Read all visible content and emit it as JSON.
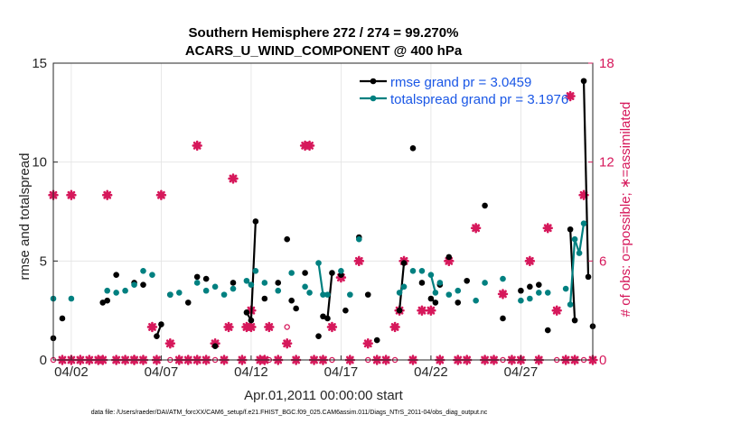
{
  "chart_data": {
    "type": "line",
    "title_line1": "Southern Hemisphere 272 / 274 = 99.270%",
    "title_line2": "ACARS_U_WIND_COMPONENT @ 400 hPa",
    "xlabel": "Apr.01,2011 00:00:00 start",
    "ylabel_left": "rmse and totalspread",
    "ylabel_right": "# of obs: o=possible; ∗=assimilated",
    "xlim": [
      1,
      31
    ],
    "ylim_left": [
      0,
      15
    ],
    "ylim_right": [
      0,
      18
    ],
    "x_ticks": [
      2,
      7,
      12,
      17,
      22,
      27
    ],
    "x_tick_labels": [
      "04/02",
      "04/07",
      "04/12",
      "04/17",
      "04/22",
      "04/27"
    ],
    "y_ticks_left": [
      0,
      5,
      10,
      15
    ],
    "y_tick_labels_left": [
      "0",
      "5",
      "10",
      "15"
    ],
    "y_ticks_right": [
      0,
      6,
      12,
      18
    ],
    "y_tick_labels_right": [
      "0",
      "6",
      "12",
      "18"
    ],
    "grid": true,
    "legend_position": "top-right",
    "series": [
      {
        "name": "rmse grand pr = 3.0459",
        "color": "#000000",
        "axis": "left",
        "x": [
          1.0,
          1.5,
          3.75,
          4.0,
          4.5,
          5.5,
          6.0,
          6.75,
          7.0,
          7.5,
          8.5,
          9.0,
          9.5,
          10.0,
          11.0,
          11.75,
          12.0,
          12.25,
          12.75,
          13.5,
          14.0,
          14.25,
          14.5,
          15.0,
          15.75,
          16.0,
          16.25,
          16.5,
          17.0,
          17.25,
          18.0,
          18.5,
          19.0,
          20.25,
          20.5,
          21.0,
          21.5,
          22.0,
          22.25,
          22.5,
          23.0,
          23.5,
          24.0,
          25.0,
          26.0,
          27.0,
          27.5,
          28.0,
          28.5,
          29.75,
          30.0,
          30.5,
          30.75,
          31.0
        ],
        "y": [
          1.1,
          2.1,
          2.9,
          3.0,
          4.3,
          3.9,
          3.8,
          1.2,
          1.8,
          3.3,
          2.9,
          4.2,
          4.1,
          0.7,
          3.9,
          2.4,
          2.0,
          7.0,
          3.1,
          3.9,
          6.1,
          3.0,
          2.6,
          4.4,
          1.2,
          2.2,
          2.1,
          4.4,
          4.3,
          2.5,
          6.2,
          3.3,
          1.0,
          2.5,
          4.9,
          10.7,
          3.9,
          3.1,
          2.9,
          3.8,
          5.2,
          2.9,
          4.0,
          7.8,
          2.1,
          3.5,
          3.7,
          3.8,
          1.5,
          6.6,
          2.0,
          14.1,
          4.2,
          1.7
        ],
        "segments": [
          [
            6.75,
            7.0
          ],
          [
            11.75,
            12.0,
            12.25
          ],
          [
            16.0,
            16.25,
            16.5
          ],
          [
            20.25,
            20.5
          ],
          [
            22.0,
            22.25
          ],
          [
            29.75,
            30.0
          ],
          [
            30.5,
            30.75
          ]
        ]
      },
      {
        "name": "totalspread grand pr = 3.1976",
        "color": "#008080",
        "axis": "left",
        "x": [
          1.0,
          2.0,
          4.0,
          4.5,
          5.0,
          5.5,
          6.0,
          6.5,
          7.5,
          8.0,
          9.0,
          9.5,
          10.0,
          10.5,
          11.0,
          11.75,
          12.0,
          12.25,
          12.75,
          13.5,
          14.25,
          15.0,
          15.25,
          15.75,
          16.0,
          16.25,
          17.0,
          17.5,
          18.0,
          20.25,
          20.5,
          21.0,
          21.5,
          22.0,
          22.25,
          22.5,
          23.0,
          23.5,
          24.5,
          25.0,
          26.0,
          27.0,
          27.5,
          28.0,
          28.5,
          29.5,
          29.75,
          30.0,
          30.25,
          30.5
        ],
        "y": [
          3.1,
          3.1,
          3.5,
          3.4,
          3.5,
          3.8,
          4.5,
          4.3,
          3.3,
          3.4,
          3.9,
          3.5,
          3.7,
          3.3,
          3.6,
          4.0,
          3.8,
          4.5,
          3.9,
          3.5,
          4.4,
          3.7,
          3.4,
          4.9,
          3.3,
          3.3,
          4.5,
          3.3,
          6.1,
          3.4,
          3.7,
          4.5,
          4.5,
          4.3,
          3.4,
          3.9,
          3.3,
          3.5,
          3.0,
          3.9,
          4.1,
          3.0,
          3.1,
          3.4,
          3.4,
          3.6,
          2.8,
          6.1,
          5.4,
          6.9
        ],
        "segments": [
          [
            11.75,
            12.0
          ],
          [
            15.75,
            16.0
          ],
          [
            20.25,
            20.5
          ],
          [
            22.0,
            22.25
          ],
          [
            29.75,
            30.0
          ],
          [
            30.0,
            30.25,
            30.5
          ]
        ]
      },
      {
        "name": "",
        "color": "#d6185b",
        "axis": "right",
        "marker": "asterisk",
        "x": [
          1.0,
          1.5,
          2.0,
          2.0,
          2.5,
          3.0,
          3.5,
          3.75,
          4.0,
          4.5,
          5.0,
          5.5,
          5.5,
          6.0,
          6.5,
          6.75,
          7.0,
          7.5,
          8.0,
          8.5,
          9.0,
          9.0,
          9.5,
          10.0,
          10.5,
          10.75,
          11.0,
          11.5,
          11.75,
          12.0,
          12.0,
          12.5,
          12.75,
          13.0,
          13.5,
          14.0,
          14.5,
          15.0,
          15.25,
          15.5,
          16.0,
          16.5,
          17.0,
          17.5,
          18.0,
          18.5,
          19.0,
          19.5,
          20.0,
          20.25,
          20.5,
          21.0,
          21.5,
          22.0,
          22.5,
          23.0,
          23.5,
          24.0,
          24.5,
          25.0,
          25.5,
          26.0,
          26.5,
          27.0,
          27.5,
          28.0,
          28.5,
          29.0,
          29.5,
          29.75,
          30.0,
          30.5,
          31.0
        ],
        "y": [
          10,
          0,
          10,
          0,
          0,
          0,
          0,
          0,
          10,
          0,
          0,
          0,
          0,
          0,
          2,
          0,
          10,
          1,
          0,
          0,
          13,
          0,
          0,
          1,
          0,
          2,
          11,
          0,
          2,
          3,
          2,
          0,
          0,
          2,
          0,
          1,
          0,
          13,
          13,
          0,
          0,
          2,
          5,
          0,
          6,
          1,
          0,
          0,
          2,
          3,
          6,
          0,
          3,
          3,
          0,
          6,
          0,
          0,
          8,
          0,
          0,
          4,
          0,
          0,
          6,
          0,
          8,
          3,
          0,
          16,
          0,
          10,
          0
        ]
      },
      {
        "name": "",
        "color": "#d6185b",
        "axis": "right",
        "marker": "circle",
        "x": [
          1.0,
          1.5,
          2.5,
          3.0,
          3.5,
          4.5,
          5.5,
          6.0,
          7.5,
          8.0,
          8.5,
          9.5,
          10.0,
          11.5,
          12.0,
          12.5,
          13.0,
          14.0,
          14.5,
          15.5,
          16.5,
          17.5,
          18.5,
          19.0,
          19.5,
          20.0,
          21.0,
          22.5,
          23.5,
          24.0,
          25.0,
          26.0,
          26.5,
          27.0,
          28.0,
          29.0,
          29.5,
          30.5,
          31.0
        ],
        "y": [
          0,
          0,
          0,
          0,
          0,
          0,
          0,
          0,
          0,
          0,
          0,
          0,
          0,
          0,
          2,
          0,
          0,
          2,
          0,
          0,
          0,
          0,
          0,
          0,
          0,
          0,
          0,
          0,
          0,
          0,
          0,
          0,
          0,
          0,
          0,
          0,
          0,
          0,
          0
        ]
      }
    ]
  },
  "legend": {
    "rmse_label": "rmse grand pr = 3.0459",
    "spread_label": "totalspread grand pr = 3.1976"
  },
  "footer": "data file: /Users/raeder/DAI/ATM_forcXX/CAM6_setup/f.e21.FHIST_BGC.f09_025.CAM6assim.011/Diags_NTrS_2011-04/obs_diag_output.nc"
}
